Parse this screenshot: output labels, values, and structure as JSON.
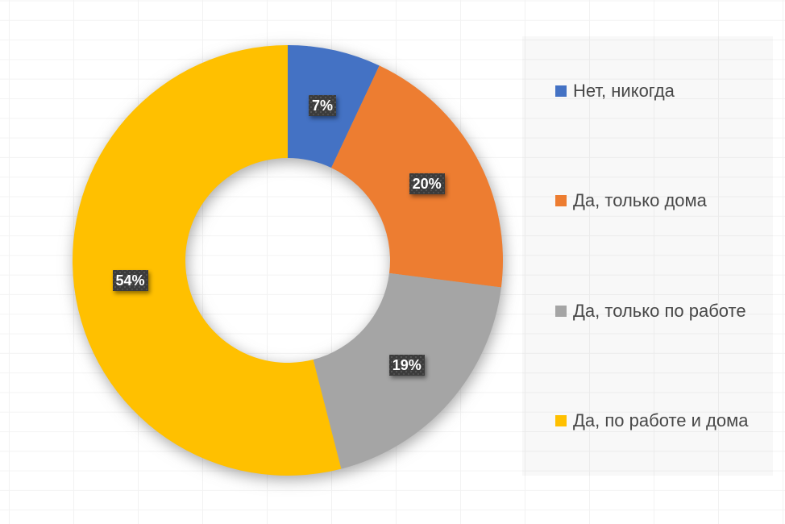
{
  "chart_data": {
    "type": "pie",
    "subtype": "donut",
    "title": "",
    "labels": [
      "Нет, никогда",
      "Да, только дома",
      "Да, только по работе",
      "Да, по работе и дома"
    ],
    "values": [
      7,
      20,
      19,
      54
    ],
    "data_labels": [
      "7%",
      "20%",
      "19%",
      "54%"
    ],
    "colors": [
      "#4472C4",
      "#ED7D31",
      "#A5A5A5",
      "#FFC000"
    ],
    "label_bg_color": "#3B3B3B",
    "label_text_color": "#FFFFFF",
    "legend_position": "right",
    "start_angle_deg": 0,
    "direction": "clockwise",
    "hole_ratio": 0.475
  }
}
